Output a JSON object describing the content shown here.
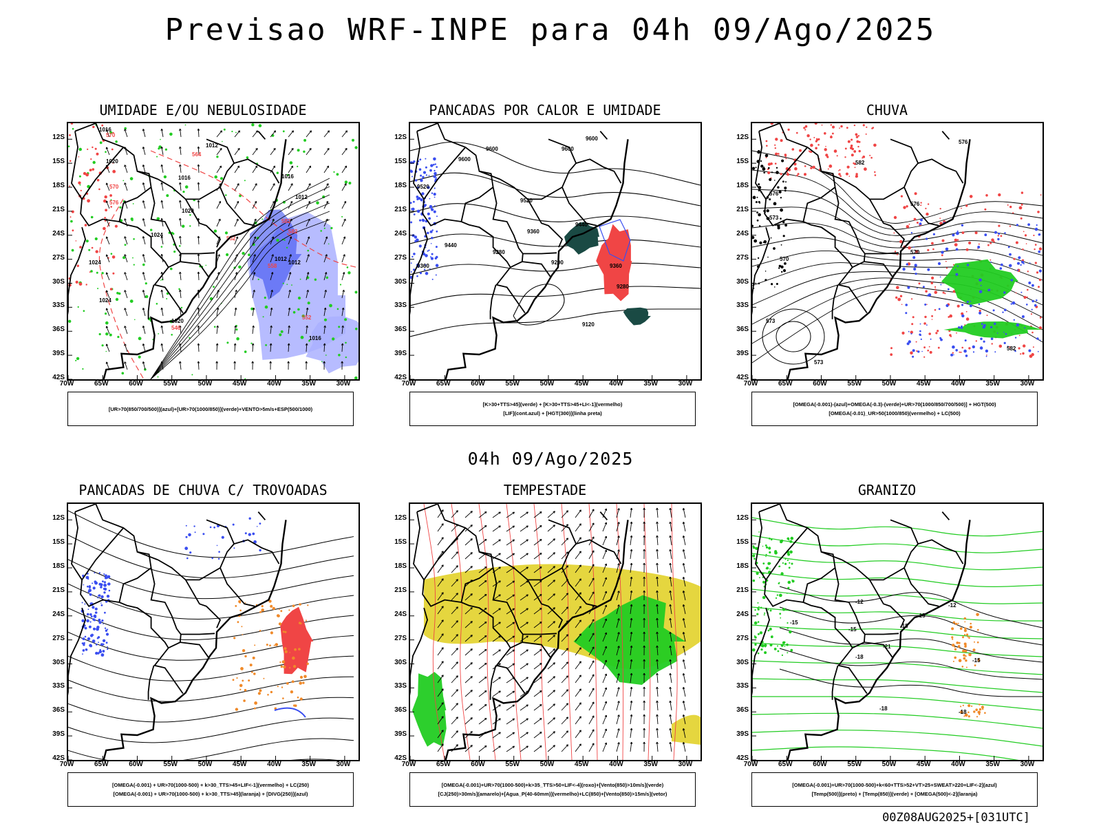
{
  "header": {
    "title": "Previsao WRF-INPE  para 04h 09/Ago/2025"
  },
  "subheader": {
    "text": "04h 09/Ago/2025"
  },
  "footer": {
    "text": "00Z08AUG2025+[031UTC]"
  },
  "axes": {
    "lat_labels": [
      "12S",
      "15S",
      "18S",
      "21S",
      "24S",
      "27S",
      "30S",
      "33S",
      "36S",
      "39S",
      "42S"
    ],
    "lon_labels": [
      "70W",
      "65W",
      "60W",
      "55W",
      "50W",
      "45W",
      "40W",
      "35W",
      "30W"
    ]
  },
  "panels": [
    {
      "title": "UMIDADE E/OU NEBULOSIDADE",
      "legend": [
        "[UR>70(850/700/500)](azul)+[UR>70(1000/850)](verde)+VENTO>5m/s+ESP(500/1000)"
      ]
    },
    {
      "title": "PANCADAS POR CALOR E UMIDADE",
      "legend": [
        "[K>30+TTS>45](verde) + [K>30+TTS>45+LI<-1](vermelho)",
        "[LIF](cont.azul) + [HGT(300)](linha preta)"
      ]
    },
    {
      "title": "CHUVA",
      "legend": [
        "[OMEGA(-0.001)-(azul)+OMEGA(-0.3)-(verde)+UR>70(1000/850/700/500)] + HGT(500)",
        "[OMEGA(-0.01)_UR>50(1000/850)(vermelho) + LC(500)"
      ]
    },
    {
      "title": "PANCADAS DE CHUVA C/ TROVOADAS",
      "legend": [
        "[OMEGA(-0.001) + UR>70(1000-500) + k>30_TTS>45+LIF<-1](vermelho) + LC(250)",
        "[OMEGA(-0.001) + UR>70(1000-500) + k>30_TTS>45](laranja) + [DIVG(250)](azul)"
      ]
    },
    {
      "title": "TEMPESTADE",
      "legend": [
        "[OMEGA(-0.001)+UR>70(1000-500)+k>35_TTS>50+LIF<-4](roxo)+[Vento(850)>10m/s](verde)",
        "[CJ(250)>30m/s](amarelo)+[Agua_P(40-60mm)](vermelho)+LC(850)+[Vento(850)>15m/s](vetor)"
      ]
    },
    {
      "title": "GRANIZO",
      "legend": [
        "[OMEGA(-0.001)+UR>70(1000-500)+k<60+TTS>52+VT>25+SWEAT>220+LIF<-2](azul)",
        "[Temp(500)](preto) + [Temp(850)](verde) + [OMEGA(500)<-2](laranja)"
      ]
    }
  ],
  "contour_labels": {
    "p1": [
      "1016",
      "1020",
      "1016",
      "1012",
      "1016",
      "1020",
      "1024",
      "1024",
      "1012",
      "1012",
      "1016",
      "1020",
      "1012",
      "1024"
    ],
    "p1_red": [
      "570",
      "576",
      "564",
      "582",
      "552",
      "558",
      "582",
      "546",
      "552",
      "570"
    ],
    "p2": [
      "9600",
      "9600",
      "9600",
      "9600",
      "9520",
      "9520",
      "9440",
      "9360",
      "9440",
      "9280",
      "9200",
      "9360",
      "9280",
      "9120",
      "9360"
    ],
    "p3": [
      "582",
      "576",
      "576",
      "573",
      "573",
      "573",
      "570",
      "570",
      "582",
      "576"
    ],
    "p5": [],
    "p6": [
      "-12",
      "-15",
      "-12",
      "-15",
      "-18",
      "-15",
      "-18",
      "-21",
      "-15",
      "-18",
      "-18"
    ]
  },
  "colors": {
    "coast": "#000000",
    "blue": "#3a4ef0",
    "light_blue": "#aab0ff",
    "green": "#22cc22",
    "red": "#f04545",
    "orange": "#f08a2a",
    "yellow": "#e2d12a",
    "dark_teal": "#1a4a44"
  }
}
